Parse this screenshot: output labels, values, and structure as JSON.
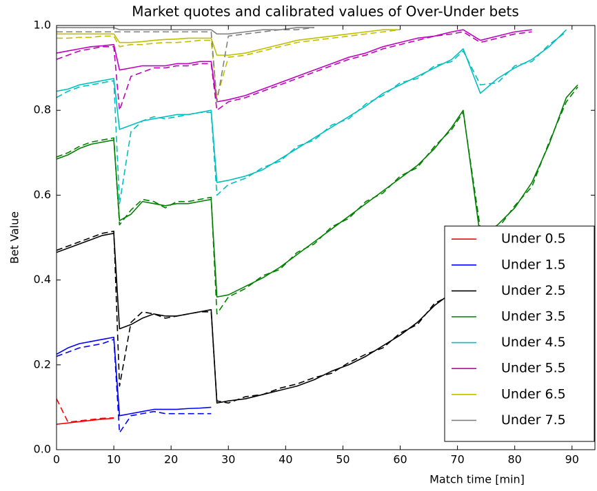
{
  "chart_data": {
    "type": "line",
    "title": "Market quotes and calibrated values of Over-Under bets",
    "x_label": "Match time [min]",
    "y_label": "Bet Value",
    "xlim": [
      0,
      94
    ],
    "ylim": [
      0,
      1
    ],
    "xticks": [
      0,
      10,
      20,
      30,
      40,
      50,
      60,
      70,
      80,
      90
    ],
    "yticks": [
      {
        "value": 0,
        "label": "0.0"
      },
      {
        "value": 0.2,
        "label": "0.2"
      },
      {
        "value": 0.4,
        "label": "0.4"
      },
      {
        "value": 0.6,
        "label": "0.6"
      },
      {
        "value": 0.8,
        "label": "0.8"
      },
      {
        "value": 1,
        "label": "1.0"
      }
    ],
    "legend": "lower right",
    "x": [
      0,
      2,
      4,
      6,
      8,
      10,
      11,
      13,
      15,
      17,
      19,
      21,
      23,
      25,
      27,
      28,
      30,
      33,
      36,
      39,
      42,
      45,
      48,
      51,
      54,
      57,
      60,
      63,
      66,
      69,
      71,
      74,
      77,
      80,
      83,
      86,
      89,
      91
    ],
    "series": [
      {
        "name": "Under 0.5",
        "color": "#ff0000",
        "values": [
          0.06,
          0.063,
          0.066,
          0.069,
          0.072,
          0.074,
          null,
          null,
          null,
          null,
          null,
          null,
          null,
          null,
          null,
          null,
          null,
          null,
          null,
          null,
          null,
          null,
          null,
          null,
          null,
          null,
          null,
          null,
          null,
          null,
          null,
          null,
          null,
          null,
          null,
          null,
          null,
          null
        ],
        "market_values": [
          0.12,
          0.065,
          0.068,
          0.071,
          0.074,
          0.075,
          null,
          null,
          null,
          null,
          null,
          null,
          null,
          null,
          null,
          null,
          null,
          null,
          null,
          null,
          null,
          null,
          null,
          null,
          null,
          null,
          null,
          null,
          null,
          null,
          null,
          null,
          null,
          null,
          null,
          null,
          null,
          null
        ]
      },
      {
        "name": "Under 1.5",
        "color": "#0000ff",
        "values": [
          0.225,
          0.24,
          0.25,
          0.255,
          0.26,
          0.265,
          0.08,
          0.085,
          0.09,
          0.095,
          0.095,
          0.095,
          0.097,
          0.098,
          0.1,
          null,
          null,
          null,
          null,
          null,
          null,
          null,
          null,
          null,
          null,
          null,
          null,
          null,
          null,
          null,
          null,
          null,
          null,
          null,
          null,
          null,
          null,
          null
        ],
        "market_values": [
          0.22,
          0.23,
          0.24,
          0.245,
          0.25,
          0.26,
          0.04,
          0.08,
          0.085,
          0.09,
          0.085,
          0.085,
          0.085,
          0.085,
          0.085,
          null,
          null,
          null,
          null,
          null,
          null,
          null,
          null,
          null,
          null,
          null,
          null,
          null,
          null,
          null,
          null,
          null,
          null,
          null,
          null,
          null,
          null,
          null
        ]
      },
      {
        "name": "Under 2.5",
        "color": "#000000",
        "values": [
          0.465,
          0.475,
          0.485,
          0.495,
          0.505,
          0.51,
          0.285,
          0.295,
          0.31,
          0.32,
          0.315,
          0.315,
          0.32,
          0.325,
          0.33,
          0.11,
          0.115,
          0.12,
          0.13,
          0.14,
          0.15,
          0.165,
          0.185,
          0.2,
          0.22,
          0.245,
          0.27,
          0.3,
          0.34,
          0.37,
          null,
          null,
          null,
          null,
          null,
          null,
          null,
          null
        ],
        "market_values": [
          0.47,
          0.48,
          0.49,
          0.5,
          0.51,
          0.515,
          0.15,
          0.3,
          0.325,
          0.32,
          0.31,
          0.315,
          0.32,
          0.325,
          0.325,
          0.115,
          0.11,
          0.125,
          0.13,
          0.145,
          0.155,
          0.17,
          0.18,
          0.205,
          0.225,
          0.24,
          0.275,
          0.295,
          0.345,
          0.365,
          null,
          null,
          null,
          null,
          null,
          null,
          null,
          null
        ]
      },
      {
        "name": "Under 3.5",
        "color": "#008000",
        "values": [
          0.685,
          0.695,
          0.71,
          0.72,
          0.725,
          0.73,
          0.54,
          0.555,
          0.585,
          0.58,
          0.575,
          0.58,
          0.58,
          0.585,
          0.59,
          0.36,
          0.365,
          0.385,
          0.405,
          0.43,
          0.46,
          0.49,
          0.52,
          0.55,
          0.58,
          0.61,
          0.64,
          0.67,
          0.71,
          0.76,
          0.8,
          0.5,
          0.53,
          0.57,
          0.63,
          0.72,
          0.83,
          0.86
        ],
        "market_values": [
          0.69,
          0.7,
          0.715,
          0.725,
          0.73,
          0.735,
          0.53,
          0.565,
          0.59,
          0.585,
          0.57,
          0.585,
          0.585,
          0.59,
          0.595,
          0.32,
          0.36,
          0.38,
          0.41,
          0.425,
          0.465,
          0.485,
          0.525,
          0.545,
          0.585,
          0.605,
          0.645,
          0.665,
          0.715,
          0.755,
          0.795,
          0.52,
          0.52,
          0.575,
          0.62,
          0.725,
          0.82,
          0.855
        ]
      },
      {
        "name": "Under 4.5",
        "color": "#00bfbf",
        "values": [
          0.845,
          0.85,
          0.86,
          0.865,
          0.87,
          0.875,
          0.755,
          0.765,
          0.775,
          0.78,
          0.785,
          0.79,
          0.79,
          0.795,
          0.8,
          0.63,
          0.635,
          0.645,
          0.66,
          0.685,
          0.71,
          0.735,
          0.76,
          0.785,
          0.81,
          0.84,
          0.86,
          0.88,
          0.9,
          0.92,
          0.945,
          0.84,
          0.875,
          0.9,
          0.92,
          0.95,
          0.99,
          null
        ],
        "market_values": [
          0.83,
          0.845,
          0.855,
          0.86,
          0.865,
          0.87,
          0.58,
          0.75,
          0.775,
          0.785,
          0.78,
          0.785,
          0.79,
          0.795,
          0.795,
          0.6,
          0.625,
          0.64,
          0.665,
          0.68,
          0.715,
          0.73,
          0.765,
          0.78,
          0.815,
          0.835,
          0.865,
          0.875,
          0.905,
          0.915,
          0.94,
          0.86,
          0.865,
          0.905,
          0.915,
          0.955,
          0.985,
          null
        ]
      },
      {
        "name": "Under 5.5",
        "color": "#bf00bf",
        "values": [
          0.935,
          0.94,
          0.945,
          0.95,
          0.952,
          0.955,
          0.895,
          0.9,
          0.905,
          0.905,
          0.905,
          0.91,
          0.91,
          0.915,
          0.915,
          0.82,
          0.825,
          0.835,
          0.85,
          0.865,
          0.88,
          0.895,
          0.91,
          0.925,
          0.935,
          0.95,
          0.96,
          0.97,
          0.975,
          0.985,
          0.99,
          0.965,
          0.975,
          0.985,
          0.99,
          null,
          null,
          null
        ],
        "market_values": [
          0.92,
          0.93,
          0.94,
          0.945,
          0.95,
          0.95,
          0.8,
          0.88,
          0.89,
          0.9,
          0.9,
          0.905,
          0.905,
          0.91,
          0.91,
          0.8,
          0.82,
          0.83,
          0.845,
          0.86,
          0.875,
          0.89,
          0.905,
          0.92,
          0.93,
          0.945,
          0.955,
          0.965,
          0.975,
          0.98,
          0.985,
          0.96,
          0.97,
          0.98,
          0.985,
          null,
          null,
          null
        ]
      },
      {
        "name": "Under 6.5",
        "color": "#bfbf00",
        "values": [
          0.98,
          0.98,
          0.98,
          0.98,
          0.98,
          0.98,
          0.96,
          0.96,
          0.962,
          0.965,
          0.967,
          0.968,
          0.97,
          0.97,
          0.97,
          0.93,
          0.93,
          0.935,
          0.945,
          0.955,
          0.965,
          0.97,
          0.975,
          0.98,
          0.985,
          0.99,
          0.99,
          null,
          null,
          null,
          null,
          null,
          null,
          null,
          null,
          null,
          null,
          null
        ],
        "market_values": [
          0.97,
          0.97,
          0.972,
          0.972,
          0.975,
          0.975,
          0.95,
          0.955,
          0.955,
          0.958,
          0.96,
          0.96,
          0.962,
          0.965,
          0.965,
          0.83,
          0.925,
          0.93,
          0.94,
          0.95,
          0.96,
          0.965,
          0.97,
          0.975,
          0.98,
          0.985,
          0.99,
          null,
          null,
          null,
          null,
          null,
          null,
          null,
          null,
          null,
          null,
          null
        ]
      },
      {
        "name": "Under 7.5",
        "color": "#808080",
        "values": [
          0.995,
          0.995,
          0.995,
          0.995,
          0.995,
          0.995,
          0.99,
          0.99,
          0.99,
          0.99,
          0.99,
          0.99,
          0.99,
          0.99,
          0.99,
          0.98,
          0.98,
          0.985,
          0.99,
          0.99,
          0.995,
          0.995,
          null,
          null,
          null,
          null,
          null,
          null,
          null,
          null,
          null,
          null,
          null,
          null,
          null,
          null,
          null,
          null
        ],
        "market_values": [
          0.985,
          0.985,
          0.985,
          0.985,
          0.985,
          0.985,
          0.985,
          0.985,
          0.985,
          0.985,
          0.985,
          0.985,
          0.985,
          0.985,
          0.985,
          0.82,
          0.975,
          0.98,
          0.985,
          0.99,
          0.99,
          0.995,
          null,
          null,
          null,
          null,
          null,
          null,
          null,
          null,
          null,
          null,
          null,
          null,
          null,
          null,
          null,
          null
        ]
      }
    ]
  }
}
